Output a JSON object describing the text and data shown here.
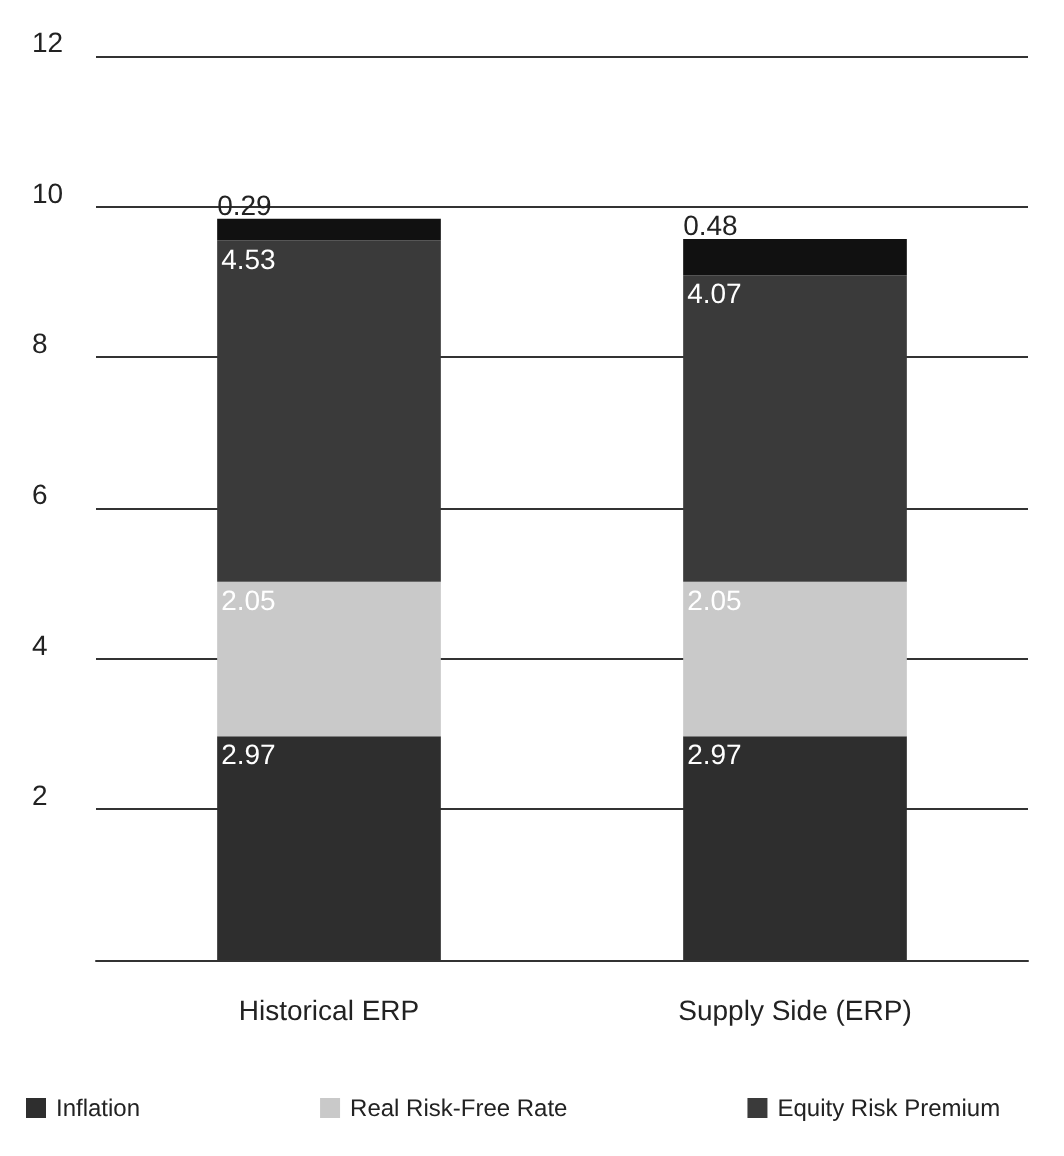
{
  "chart_data": {
    "type": "bar",
    "stacked": true,
    "categories": [
      "Historical ERP",
      "Supply Side (ERP)"
    ],
    "series": [
      {
        "name": "Inflation",
        "color": "#2e2e2e",
        "values": [
          2.97,
          2.97
        ]
      },
      {
        "name": "Real Risk-Free Rate",
        "color": "#c9c9c9",
        "values": [
          2.05,
          2.05
        ]
      },
      {
        "name": "Equity Risk Premium",
        "color": "#3a3a3a",
        "values": [
          4.53,
          4.07
        ]
      },
      {
        "color": "#111111",
        "values": [
          0.29,
          0.48
        ]
      }
    ],
    "ylim": [
      0,
      12
    ],
    "yticks": [
      {
        "value": 0,
        "label": null
      },
      2,
      4,
      6,
      8,
      10,
      12
    ],
    "grid": "y",
    "data_labels": true,
    "legend": "bottom"
  }
}
